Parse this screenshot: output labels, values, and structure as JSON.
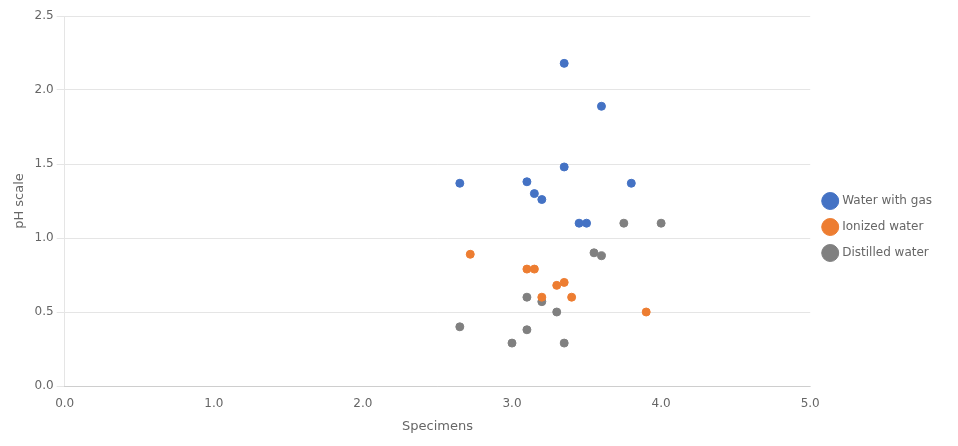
{
  "chart_data": {
    "type": "scatter",
    "xlabel": "Specimens",
    "ylabel": "pH scale",
    "series": [
      {
        "name": "Water with gas",
        "color": "#4472C4",
        "marker": "circle",
        "x": [
          2.65,
          3.1,
          3.15,
          3.2,
          3.35,
          3.35,
          3.45,
          3.5,
          3.6,
          3.8
        ],
        "values": [
          1.37,
          1.38,
          1.3,
          1.26,
          2.18,
          1.48,
          1.1,
          1.1,
          1.89,
          1.37
        ]
      },
      {
        "name": "Ionized water",
        "color": "#ED7D31",
        "marker": "circle",
        "x": [
          2.72,
          3.1,
          3.15,
          3.2,
          3.3,
          3.35,
          3.4,
          3.9
        ],
        "values": [
          0.89,
          0.79,
          0.79,
          0.6,
          0.68,
          0.7,
          0.6,
          0.5
        ]
      },
      {
        "name": "Distilled water",
        "color": "#808080",
        "marker": "circle",
        "x": [
          2.65,
          3.0,
          3.1,
          3.1,
          3.2,
          3.3,
          3.35,
          3.55,
          3.6,
          3.75,
          4.0
        ],
        "values": [
          0.4,
          0.29,
          0.6,
          0.38,
          0.57,
          0.5,
          0.29,
          0.9,
          0.88,
          1.1,
          1.1
        ]
      }
    ],
    "xlim": [
      0.0,
      5.0
    ],
    "ylim": [
      0.0,
      2.5
    ],
    "xticks": [
      {
        "value": 0,
        "label": "0.0"
      },
      {
        "value": 1,
        "label": "1.0"
      },
      {
        "value": 2,
        "label": "2.0"
      },
      {
        "value": 3,
        "label": "3.0"
      },
      {
        "value": 4,
        "label": "4.0"
      },
      {
        "value": 5,
        "label": "5.0"
      }
    ],
    "yticks": [
      {
        "value": 0,
        "label": "0.0"
      },
      0.5,
      {
        "value": 1,
        "label": "1.0"
      },
      1.5,
      {
        "value": 2,
        "label": "2.0"
      },
      2.5
    ],
    "grid": "y",
    "legend": "right"
  }
}
